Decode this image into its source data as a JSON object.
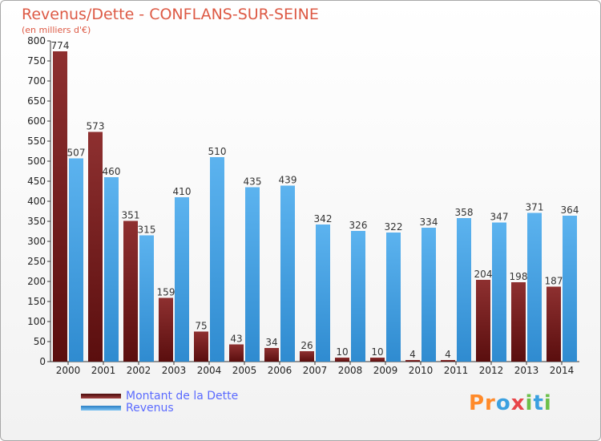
{
  "chart_data": {
    "type": "bar",
    "title": "Revenus/Dette - CONFLANS-SUR-SEINE",
    "subtitle": "(en milliers d'€)",
    "categories": [
      "2000",
      "2001",
      "2002",
      "2003",
      "2004",
      "2005",
      "2006",
      "2007",
      "2008",
      "2009",
      "2010",
      "2011",
      "2012",
      "2013",
      "2014"
    ],
    "series": [
      {
        "name": "Montant de la Dette",
        "values": [
          774,
          573,
          351,
          159,
          75,
          43,
          34,
          26,
          10,
          10,
          4,
          4,
          204,
          198,
          187
        ],
        "color": "#7b1f1f"
      },
      {
        "name": "Revenus",
        "values": [
          507,
          460,
          315,
          410,
          510,
          435,
          439,
          342,
          326,
          322,
          334,
          358,
          347,
          371,
          364
        ],
        "color": "#49a4e4"
      }
    ],
    "ylim": [
      0,
      800
    ],
    "yticks": [
      0,
      50,
      100,
      150,
      200,
      250,
      300,
      350,
      400,
      450,
      500,
      550,
      600,
      650,
      700,
      750,
      800
    ],
    "grid": false,
    "legend": "bottom-left"
  },
  "logo": {
    "text": "Proxiti"
  }
}
